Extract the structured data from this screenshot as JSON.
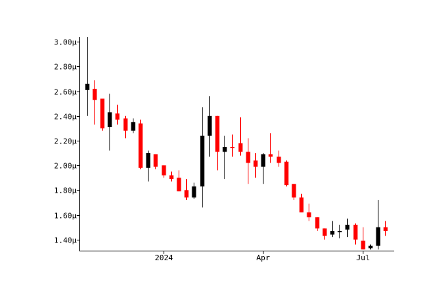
{
  "chart_data": {
    "type": "candlestick",
    "title": "",
    "xlabel": "",
    "ylabel": "",
    "ylim": [
      1.31,
      3.04
    ],
    "y_ticks": [
      {
        "value": 1.4,
        "label": "1.40µ"
      },
      {
        "value": 1.6,
        "label": "1.60µ"
      },
      {
        "value": 1.8,
        "label": "1.80µ"
      },
      {
        "value": 2.0,
        "label": "2.00µ"
      },
      {
        "value": 2.2,
        "label": "2.20µ"
      },
      {
        "value": 2.4,
        "label": "2.40µ"
      },
      {
        "value": 2.6,
        "label": "2.60µ"
      },
      {
        "value": 2.8,
        "label": "2.80µ"
      },
      {
        "value": 3.0,
        "label": "3.00µ"
      }
    ],
    "x_ticks": [
      {
        "index": 10,
        "label": "2024"
      },
      {
        "index": 23,
        "label": "Apr"
      },
      {
        "index": 36,
        "label": "Jul"
      }
    ],
    "colors": {
      "up": "#000000",
      "down": "#ff0000",
      "axis": "#000000"
    },
    "grid": false,
    "candles": [
      {
        "o": 2.61,
        "h": 3.04,
        "l": 2.4,
        "c": 2.66
      },
      {
        "o": 2.62,
        "h": 2.69,
        "l": 2.33,
        "c": 2.53
      },
      {
        "o": 2.54,
        "h": 2.54,
        "l": 2.28,
        "c": 2.3
      },
      {
        "o": 2.31,
        "h": 2.58,
        "l": 2.12,
        "c": 2.43
      },
      {
        "o": 2.42,
        "h": 2.49,
        "l": 2.33,
        "c": 2.37
      },
      {
        "o": 2.38,
        "h": 2.4,
        "l": 2.22,
        "c": 2.28
      },
      {
        "o": 2.28,
        "h": 2.38,
        "l": 2.26,
        "c": 2.35
      },
      {
        "o": 2.34,
        "h": 2.37,
        "l": 1.97,
        "c": 1.98
      },
      {
        "o": 1.98,
        "h": 2.12,
        "l": 1.87,
        "c": 2.1
      },
      {
        "o": 2.09,
        "h": 2.09,
        "l": 1.97,
        "c": 1.99
      },
      {
        "o": 2.0,
        "h": 2.0,
        "l": 1.9,
        "c": 1.92
      },
      {
        "o": 1.92,
        "h": 1.95,
        "l": 1.87,
        "c": 1.89
      },
      {
        "o": 1.9,
        "h": 1.96,
        "l": 1.79,
        "c": 1.79
      },
      {
        "o": 1.8,
        "h": 1.89,
        "l": 1.72,
        "c": 1.74
      },
      {
        "o": 1.74,
        "h": 1.86,
        "l": 1.73,
        "c": 1.83
      },
      {
        "o": 1.83,
        "h": 2.47,
        "l": 1.66,
        "c": 2.24
      },
      {
        "o": 2.24,
        "h": 2.56,
        "l": 2.07,
        "c": 2.4
      },
      {
        "o": 2.4,
        "h": 2.4,
        "l": 1.96,
        "c": 2.11
      },
      {
        "o": 2.11,
        "h": 2.24,
        "l": 1.89,
        "c": 2.15
      },
      {
        "o": 2.15,
        "h": 2.25,
        "l": 2.07,
        "c": 2.14
      },
      {
        "o": 2.18,
        "h": 2.39,
        "l": 2.08,
        "c": 2.11
      },
      {
        "o": 2.11,
        "h": 2.22,
        "l": 1.85,
        "c": 2.02
      },
      {
        "o": 2.04,
        "h": 2.1,
        "l": 1.9,
        "c": 1.99
      },
      {
        "o": 1.99,
        "h": 2.1,
        "l": 1.85,
        "c": 2.09
      },
      {
        "o": 2.09,
        "h": 2.26,
        "l": 2.02,
        "c": 2.07
      },
      {
        "o": 2.07,
        "h": 2.12,
        "l": 1.99,
        "c": 2.02
      },
      {
        "o": 2.03,
        "h": 2.04,
        "l": 1.83,
        "c": 1.84
      },
      {
        "o": 1.85,
        "h": 1.85,
        "l": 1.72,
        "c": 1.74
      },
      {
        "o": 1.74,
        "h": 1.77,
        "l": 1.62,
        "c": 1.62
      },
      {
        "o": 1.62,
        "h": 1.69,
        "l": 1.55,
        "c": 1.58
      },
      {
        "o": 1.58,
        "h": 1.58,
        "l": 1.47,
        "c": 1.49
      },
      {
        "o": 1.49,
        "h": 1.49,
        "l": 1.4,
        "c": 1.43
      },
      {
        "o": 1.44,
        "h": 1.55,
        "l": 1.42,
        "c": 1.47
      },
      {
        "o": 1.47,
        "h": 1.52,
        "l": 1.41,
        "c": 1.47
      },
      {
        "o": 1.48,
        "h": 1.57,
        "l": 1.42,
        "c": 1.52
      },
      {
        "o": 1.52,
        "h": 1.53,
        "l": 1.36,
        "c": 1.4
      },
      {
        "o": 1.39,
        "h": 1.5,
        "l": 1.32,
        "c": 1.32
      },
      {
        "o": 1.33,
        "h": 1.36,
        "l": 1.32,
        "c": 1.35
      },
      {
        "o": 1.35,
        "h": 1.72,
        "l": 1.32,
        "c": 1.5
      },
      {
        "o": 1.5,
        "h": 1.55,
        "l": 1.43,
        "c": 1.47
      }
    ]
  }
}
